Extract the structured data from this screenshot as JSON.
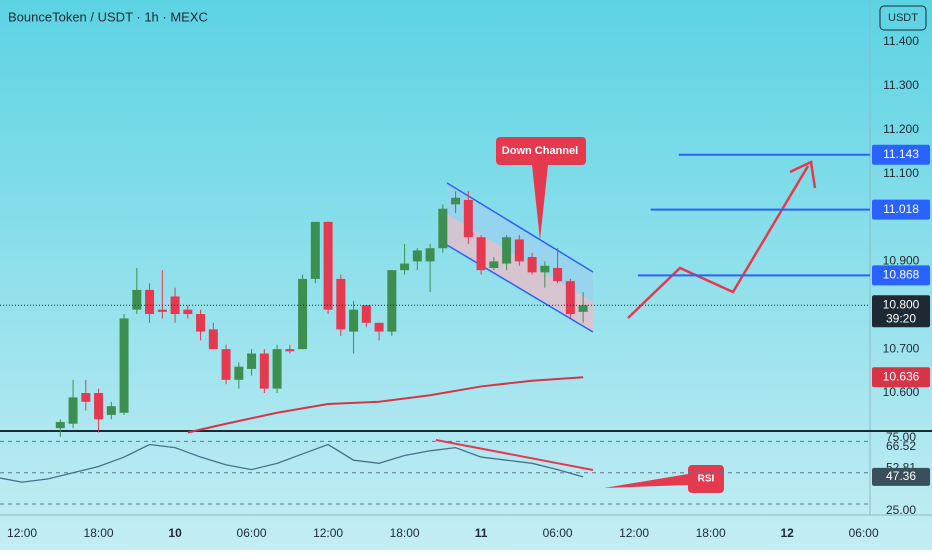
{
  "chart_data": [
    {
      "type": "candlestick",
      "title": "BounceToken / USDT · 1h · MEXC",
      "currency": "USDT",
      "x": [
        3,
        4,
        5,
        6,
        7,
        8,
        9,
        10,
        11,
        12,
        13,
        14,
        15,
        16,
        17,
        18,
        19,
        20,
        21,
        22,
        23,
        24,
        25,
        26,
        27,
        28,
        29,
        30,
        31,
        32,
        33,
        34,
        35,
        36,
        37,
        38,
        39,
        40,
        41,
        42,
        43,
        44
      ],
      "open": [
        10.52,
        10.53,
        10.6,
        10.6,
        10.55,
        10.555,
        10.79,
        10.835,
        10.79,
        10.82,
        10.79,
        10.78,
        10.745,
        10.7,
        10.63,
        10.655,
        10.69,
        10.61,
        10.7,
        10.7,
        10.86,
        10.99,
        10.86,
        10.74,
        10.8,
        10.76,
        10.74,
        10.88,
        10.9,
        10.9,
        10.93,
        11.03,
        11.04,
        10.955,
        10.885,
        10.895,
        10.95,
        10.91,
        10.875,
        10.885,
        10.855,
        10.785
      ],
      "high": [
        10.54,
        10.63,
        10.63,
        10.61,
        10.58,
        10.78,
        10.885,
        10.85,
        10.88,
        10.84,
        10.8,
        10.79,
        10.76,
        10.71,
        10.67,
        10.7,
        10.7,
        10.71,
        10.71,
        10.87,
        10.99,
        10.99,
        10.87,
        10.81,
        10.8,
        10.76,
        10.88,
        10.94,
        10.93,
        10.94,
        11.03,
        11.06,
        11.06,
        10.96,
        10.91,
        10.96,
        10.96,
        10.92,
        10.9,
        10.93,
        10.86,
        10.83
      ],
      "low": [
        10.5,
        10.52,
        10.56,
        10.51,
        10.54,
        10.55,
        10.78,
        10.76,
        10.77,
        10.76,
        10.77,
        10.72,
        10.7,
        10.62,
        10.61,
        10.64,
        10.6,
        10.6,
        10.69,
        10.7,
        10.85,
        10.78,
        10.73,
        10.69,
        10.75,
        10.72,
        10.73,
        10.87,
        10.88,
        10.83,
        10.92,
        11.01,
        10.94,
        10.87,
        10.88,
        10.88,
        10.89,
        10.87,
        10.84,
        10.85,
        10.77,
        10.76
      ],
      "close": [
        10.534,
        10.59,
        10.58,
        10.54,
        10.57,
        10.77,
        10.835,
        10.78,
        10.785,
        10.78,
        10.78,
        10.74,
        10.7,
        10.63,
        10.66,
        10.69,
        10.61,
        10.7,
        10.695,
        10.86,
        10.99,
        10.79,
        10.745,
        10.79,
        10.76,
        10.74,
        10.88,
        10.895,
        10.925,
        10.93,
        11.02,
        11.045,
        10.955,
        10.88,
        10.9,
        10.955,
        10.9,
        10.875,
        10.89,
        10.855,
        10.78,
        10.8
      ],
      "up_color": "#3d8f4f",
      "down_color": "#e53950",
      "ma": {
        "color": "#d63447",
        "x": [
          13,
          16,
          20,
          24,
          28,
          32,
          36,
          40,
          44
        ],
        "values": [
          10.51,
          10.53,
          10.555,
          10.575,
          10.58,
          10.595,
          10.615,
          10.628,
          10.636
        ]
      },
      "ma_last": {
        "value": 10.636,
        "label": "10.636"
      },
      "price_lines": [
        {
          "value": 11.143,
          "label": "11.143",
          "start": 51.5
        },
        {
          "value": 11.018,
          "label": "11.018",
          "start": 49.3
        },
        {
          "value": 10.868,
          "label": "10.868",
          "start": 48.3
        }
      ],
      "line_color": "#2962ff",
      "last_price": {
        "value": 10.8,
        "label": "10.800"
      },
      "countdown": "39:20",
      "annotation": "Down Channel",
      "xlim": [
        -1.73,
        66.5
      ],
      "ylim": [
        10.5157,
        11.4957
      ],
      "yticks": [
        {
          "value": 11.4,
          "label": "11.400"
        },
        {
          "value": 11.3,
          "label": "11.300"
        },
        {
          "value": 11.2,
          "label": "11.200"
        },
        {
          "value": 11.1,
          "label": "11.100"
        },
        {
          "value": 10.9,
          "label": "10.900"
        },
        {
          "value": 10.7,
          "label": "10.700"
        },
        {
          "value": 10.6,
          "label": "10.600"
        }
      ],
      "xticks": [
        {
          "value": 0,
          "label": "12:00"
        },
        {
          "value": 6,
          "label": "18:00"
        },
        {
          "value": 12,
          "label": "10"
        },
        {
          "value": 18,
          "label": "06:00"
        },
        {
          "value": 24,
          "label": "12:00"
        },
        {
          "value": 30,
          "label": "18:00"
        },
        {
          "value": 36,
          "label": "11"
        },
        {
          "value": 42,
          "label": "06:00"
        },
        {
          "value": 48,
          "label": "12:00"
        },
        {
          "value": 54,
          "label": "18:00"
        },
        {
          "value": 60,
          "label": "12"
        },
        {
          "value": 66,
          "label": "06:00"
        }
      ]
    },
    {
      "type": "line",
      "annotation": "RSI",
      "color": "#4a6f8a",
      "x": [
        -2,
        0,
        2,
        4,
        6,
        8,
        10,
        12,
        14,
        16,
        18,
        20,
        22,
        24,
        26,
        28,
        30,
        32,
        34,
        36,
        38,
        40,
        42,
        44
      ],
      "values": [
        47,
        44,
        46,
        50,
        54,
        60,
        68,
        66,
        60,
        55,
        52,
        56,
        62,
        68,
        58,
        56,
        61,
        64,
        66,
        60,
        58,
        56,
        52,
        47.36
      ],
      "current": {
        "value": 47.36,
        "label": "47.36"
      },
      "levels": [
        70,
        50,
        30
      ],
      "ylim": [
        23,
        76
      ],
      "yticks": [
        {
          "value": 75,
          "label": "75.00"
        },
        {
          "value": 66.52,
          "label": "66.52"
        },
        {
          "value": 52.81,
          "label": "52.81"
        },
        {
          "value": 25,
          "label": "25.00"
        }
      ]
    }
  ]
}
